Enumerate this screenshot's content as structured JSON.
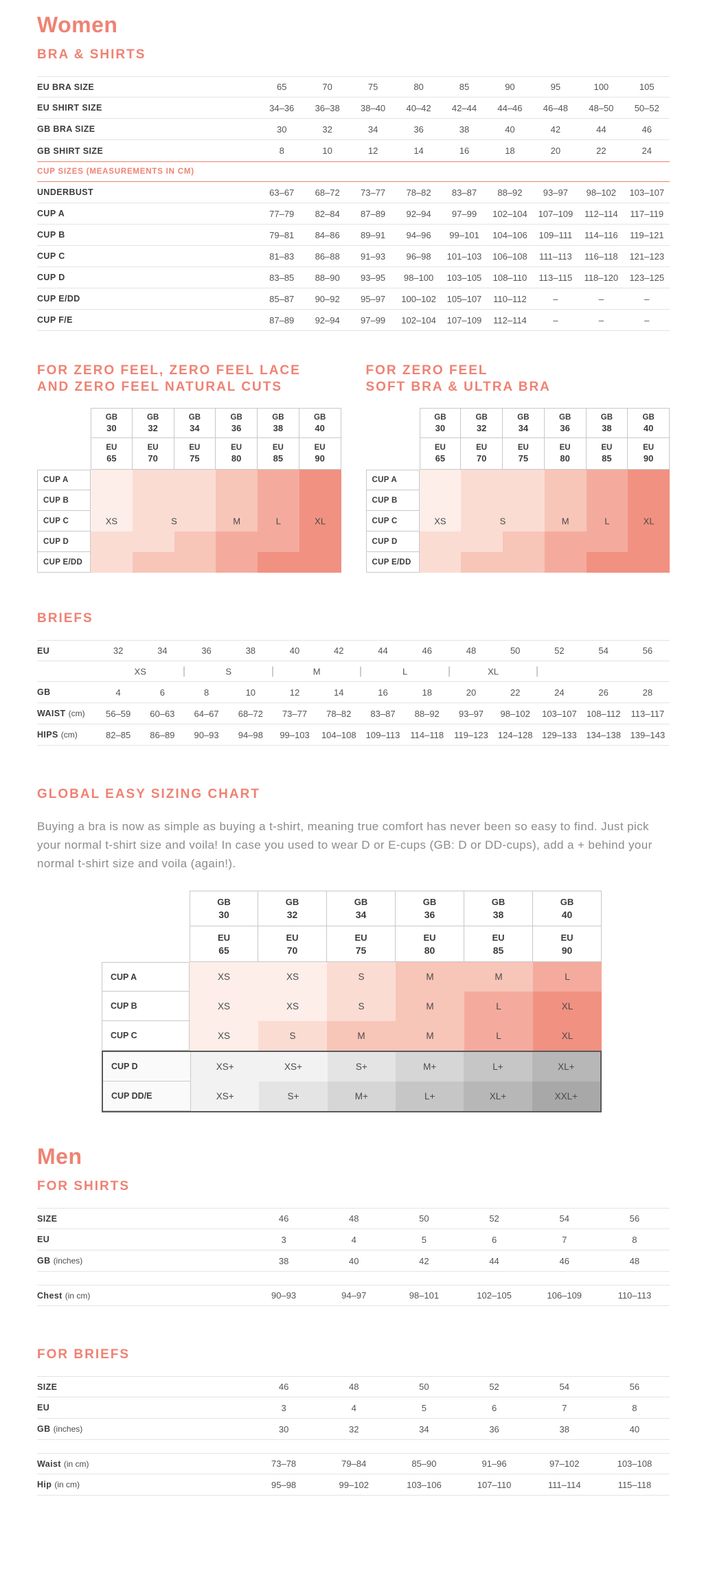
{
  "women": {
    "title": "Women",
    "bra_shirts": {
      "heading": "BRA & SHIRTS",
      "size_rows": [
        {
          "label": "EU BRA SIZE",
          "values": [
            "65",
            "70",
            "75",
            "80",
            "85",
            "90",
            "95",
            "100",
            "105"
          ]
        },
        {
          "label": "EU SHIRT SIZE",
          "values": [
            "34–36",
            "36–38",
            "38–40",
            "40–42",
            "42–44",
            "44–46",
            "46–48",
            "48–50",
            "50–52"
          ]
        },
        {
          "label": "GB BRA SIZE",
          "values": [
            "30",
            "32",
            "34",
            "36",
            "38",
            "40",
            "42",
            "44",
            "46"
          ]
        },
        {
          "label": "GB SHIRT SIZE",
          "values": [
            "8",
            "10",
            "12",
            "14",
            "16",
            "18",
            "20",
            "22",
            "24"
          ]
        }
      ],
      "cup_header": "CUP SIZES (MEASUREMENTS IN CM)",
      "cup_rows": [
        {
          "label": "UNDERBUST",
          "values": [
            "63–67",
            "68–72",
            "73–77",
            "78–82",
            "83–87",
            "88–92",
            "93–97",
            "98–102",
            "103–107"
          ]
        },
        {
          "label": "CUP A",
          "values": [
            "77–79",
            "82–84",
            "87–89",
            "92–94",
            "97–99",
            "102–104",
            "107–109",
            "112–114",
            "117–119"
          ]
        },
        {
          "label": "CUP B",
          "values": [
            "79–81",
            "84–86",
            "89–91",
            "94–96",
            "99–101",
            "104–106",
            "109–111",
            "114–116",
            "119–121"
          ]
        },
        {
          "label": "CUP C",
          "values": [
            "81–83",
            "86–88",
            "91–93",
            "96–98",
            "101–103",
            "106–108",
            "111–113",
            "116–118",
            "121–123"
          ]
        },
        {
          "label": "CUP D",
          "values": [
            "83–85",
            "88–90",
            "93–95",
            "98–100",
            "103–105",
            "108–110",
            "113–115",
            "118–120",
            "123–125"
          ]
        },
        {
          "label": "CUP E/DD",
          "values": [
            "85–87",
            "90–92",
            "95–97",
            "100–102",
            "105–107",
            "110–112",
            "–",
            "–",
            "–"
          ]
        },
        {
          "label": "CUP F/E",
          "values": [
            "87–89",
            "92–94",
            "97–99",
            "102–104",
            "107–109",
            "112–114",
            "–",
            "–",
            "–"
          ]
        }
      ]
    },
    "zero_feel_cuts": {
      "heading_line1": "FOR ZERO FEEL, ZERO FEEL LACE",
      "heading_line2": "AND ZERO FEEL NATURAL CUTS",
      "gb_label": "GB",
      "eu_label": "EU",
      "gb_sizes": [
        "30",
        "32",
        "34",
        "36",
        "38",
        "40"
      ],
      "eu_sizes": [
        "65",
        "70",
        "75",
        "80",
        "85",
        "90"
      ],
      "cup_labels": [
        "CUP A",
        "CUP B",
        "CUP C",
        "CUP D",
        "CUP E/DD"
      ],
      "size_labels": [
        "XS",
        "S",
        "M",
        "L",
        "XL"
      ],
      "cell_colors": [
        [
          "#fdeeea",
          "#fbdcd3",
          "#fbdcd3",
          "#f8c5b9",
          "#f4ab9d",
          "#f19181"
        ],
        [
          "#fdeeea",
          "#fbdcd3",
          "#fbdcd3",
          "#f8c5b9",
          "#f4ab9d",
          "#f19181"
        ],
        [
          "#fdeeea",
          "#fbdcd3",
          "#fbdcd3",
          "#f8c5b9",
          "#f4ab9d",
          "#f19181"
        ],
        [
          "#fbdcd3",
          "#fbdcd3",
          "#f8c5b9",
          "#f4ab9d",
          "#f4ab9d",
          "#f19181"
        ],
        [
          "#fbdcd3",
          "#f8c5b9",
          "#f8c5b9",
          "#f4ab9d",
          "#f19181",
          "#f19181"
        ]
      ]
    },
    "zero_feel_soft": {
      "heading_line1": "FOR ZERO FEEL",
      "heading_line2": "SOFT BRA & ULTRA BRA",
      "gb_label": "GB",
      "eu_label": "EU",
      "gb_sizes": [
        "30",
        "32",
        "34",
        "36",
        "38",
        "40"
      ],
      "eu_sizes": [
        "65",
        "70",
        "75",
        "80",
        "85",
        "90"
      ],
      "cup_labels": [
        "CUP A",
        "CUP B",
        "CUP C",
        "CUP D",
        "CUP E/DD"
      ],
      "size_labels": [
        "XS",
        "S",
        "M",
        "L",
        "XL"
      ],
      "cell_colors": [
        [
          "#fdeeea",
          "#fbdcd3",
          "#fbdcd3",
          "#f8c5b9",
          "#f4ab9d",
          "#f19181"
        ],
        [
          "#fdeeea",
          "#fbdcd3",
          "#fbdcd3",
          "#f8c5b9",
          "#f4ab9d",
          "#f19181"
        ],
        [
          "#fdeeea",
          "#fbdcd3",
          "#fbdcd3",
          "#f8c5b9",
          "#f4ab9d",
          "#f19181"
        ],
        [
          "#fbdcd3",
          "#fbdcd3",
          "#f8c5b9",
          "#f4ab9d",
          "#f4ab9d",
          "#f19181"
        ],
        [
          "#fbdcd3",
          "#f8c5b9",
          "#f8c5b9",
          "#f4ab9d",
          "#f19181",
          "#f19181"
        ]
      ]
    },
    "briefs": {
      "heading": "BRIEFS",
      "eu_row": {
        "label": "EU",
        "values": [
          "32",
          "34",
          "36",
          "38",
          "40",
          "42",
          "44",
          "46",
          "48",
          "50",
          "52",
          "54",
          "56"
        ]
      },
      "size_groups": [
        "XS",
        "S",
        "M",
        "L",
        "XL"
      ],
      "rows": [
        {
          "label": "GB",
          "values": [
            "4",
            "6",
            "8",
            "10",
            "12",
            "14",
            "16",
            "18",
            "20",
            "22",
            "24",
            "26",
            "28"
          ]
        },
        {
          "label": "WAIST",
          "unit": "(cm)",
          "values": [
            "56–59",
            "60–63",
            "64–67",
            "68–72",
            "73–77",
            "78–82",
            "83–87",
            "88–92",
            "93–97",
            "98–102",
            "103–107",
            "108–112",
            "113–117"
          ]
        },
        {
          "label": "HIPS",
          "unit": "(cm)",
          "values": [
            "82–85",
            "86–89",
            "90–93",
            "94–98",
            "99–103",
            "104–108",
            "109–113",
            "114–118",
            "119–123",
            "124–128",
            "129–133",
            "134–138",
            "139–143"
          ]
        }
      ]
    },
    "global_chart": {
      "heading": "GLOBAL EASY SIZING CHART",
      "intro": "Buying a bra is now as simple as buying a t-shirt, meaning true comfort has never been so easy to find. Just pick your normal t-shirt size and voila! In case you used to wear D or E-cups (GB: D or DD-cups), add a + behind your normal t-shirt size and voila (again!).",
      "gb_label": "GB",
      "eu_label": "EU",
      "gb_sizes": [
        "30",
        "32",
        "34",
        "36",
        "38",
        "40"
      ],
      "eu_sizes": [
        "65",
        "70",
        "75",
        "80",
        "85",
        "90"
      ],
      "pink_rows": [
        {
          "label": "CUP A",
          "cells": [
            {
              "v": "XS",
              "bg": "#fdeeea"
            },
            {
              "v": "XS",
              "bg": "#fdeeea"
            },
            {
              "v": "S",
              "bg": "#fbdcd3"
            },
            {
              "v": "M",
              "bg": "#f8c5b9"
            },
            {
              "v": "M",
              "bg": "#f8c5b9"
            },
            {
              "v": "L",
              "bg": "#f4ab9d"
            }
          ]
        },
        {
          "label": "CUP B",
          "cells": [
            {
              "v": "XS",
              "bg": "#fdeeea"
            },
            {
              "v": "XS",
              "bg": "#fdeeea"
            },
            {
              "v": "S",
              "bg": "#fbdcd3"
            },
            {
              "v": "M",
              "bg": "#f8c5b9"
            },
            {
              "v": "L",
              "bg": "#f4ab9d"
            },
            {
              "v": "XL",
              "bg": "#f19181"
            }
          ]
        },
        {
          "label": "CUP C",
          "cells": [
            {
              "v": "XS",
              "bg": "#fdeeea"
            },
            {
              "v": "S",
              "bg": "#fbdcd3"
            },
            {
              "v": "M",
              "bg": "#f8c5b9"
            },
            {
              "v": "M",
              "bg": "#f8c5b9"
            },
            {
              "v": "L",
              "bg": "#f4ab9d"
            },
            {
              "v": "XL",
              "bg": "#f19181"
            }
          ]
        }
      ],
      "gray_rows": [
        {
          "label": "CUP D",
          "cells": [
            {
              "v": "XS+",
              "bg": "#f2f2f2"
            },
            {
              "v": "XS+",
              "bg": "#f2f2f2"
            },
            {
              "v": "S+",
              "bg": "#e4e4e4"
            },
            {
              "v": "M+",
              "bg": "#d6d6d6"
            },
            {
              "v": "L+",
              "bg": "#c6c6c6"
            },
            {
              "v": "XL+",
              "bg": "#b7b7b7"
            }
          ]
        },
        {
          "label": "CUP DD/E",
          "cells": [
            {
              "v": "XS+",
              "bg": "#f2f2f2"
            },
            {
              "v": "S+",
              "bg": "#e4e4e4"
            },
            {
              "v": "M+",
              "bg": "#d6d6d6"
            },
            {
              "v": "L+",
              "bg": "#c6c6c6"
            },
            {
              "v": "XL+",
              "bg": "#b7b7b7"
            },
            {
              "v": "XXL+",
              "bg": "#a8a8a8"
            }
          ]
        }
      ]
    }
  },
  "men": {
    "title": "Men",
    "shirts": {
      "heading": "FOR SHIRTS",
      "size_rows": [
        {
          "label": "SIZE",
          "values": [
            "46",
            "48",
            "50",
            "52",
            "54",
            "56"
          ]
        },
        {
          "label": "EU",
          "values": [
            "3",
            "4",
            "5",
            "6",
            "7",
            "8"
          ]
        },
        {
          "label": "GB",
          "unit": "(inches)",
          "values": [
            "38",
            "40",
            "42",
            "44",
            "46",
            "48"
          ]
        }
      ],
      "measure_rows": [
        {
          "label": "Chest",
          "unit": "(in cm)",
          "values": [
            "90–93",
            "94–97",
            "98–101",
            "102–105",
            "106–109",
            "110–113"
          ]
        }
      ]
    },
    "briefs": {
      "heading": "FOR BRIEFS",
      "size_rows": [
        {
          "label": "SIZE",
          "values": [
            "46",
            "48",
            "50",
            "52",
            "54",
            "56"
          ]
        },
        {
          "label": "EU",
          "values": [
            "3",
            "4",
            "5",
            "6",
            "7",
            "8"
          ]
        },
        {
          "label": "GB",
          "unit": "(inches)",
          "values": [
            "30",
            "32",
            "34",
            "36",
            "38",
            "40"
          ]
        }
      ],
      "measure_rows": [
        {
          "label": "Waist",
          "unit": "(in cm)",
          "values": [
            "73–78",
            "79–84",
            "85–90",
            "91–96",
            "97–102",
            "103–108"
          ]
        },
        {
          "label": "Hip",
          "unit": "(in cm)",
          "values": [
            "95–98",
            "99–102",
            "103–106",
            "107–110",
            "111–114",
            "115–118"
          ]
        }
      ]
    }
  }
}
